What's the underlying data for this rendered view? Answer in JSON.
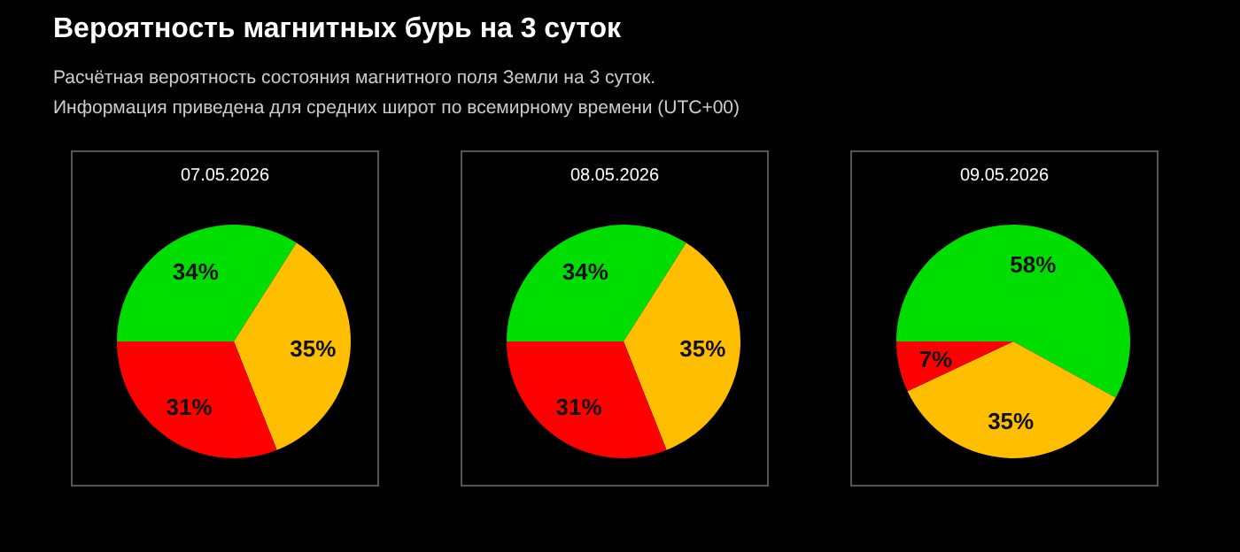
{
  "chart_data": [
    {
      "type": "other",
      "title": "Вероятность магнитных бурь на 3 суток",
      "annotations": [
        "Расчётная вероятность состояния магнитного поля Земли на 3 суток.",
        "Информация приведена для средних широт по всемирному времени (UTC+00)"
      ]
    },
    {
      "type": "pie",
      "title": "07.05.2026",
      "categories": [
        null,
        null,
        null
      ],
      "values": [
        34,
        35,
        31
      ],
      "colors": [
        "#00dd00",
        "#ffbf00",
        "#ff0000"
      ],
      "value_labels": [
        "34%",
        "35%",
        "31%"
      ]
    },
    {
      "type": "pie",
      "title": "08.05.2026",
      "categories": [
        null,
        null,
        null
      ],
      "values": [
        34,
        35,
        31
      ],
      "colors": [
        "#00dd00",
        "#ffbf00",
        "#ff0000"
      ],
      "value_labels": [
        "34%",
        "35%",
        "31%"
      ]
    },
    {
      "type": "pie",
      "title": "09.05.2026",
      "categories": [
        null,
        null,
        null
      ],
      "values": [
        58,
        35,
        7
      ],
      "colors": [
        "#00dd00",
        "#ffbf00",
        "#ff0000"
      ],
      "value_labels": [
        "58%",
        "35%",
        "7%"
      ]
    }
  ]
}
